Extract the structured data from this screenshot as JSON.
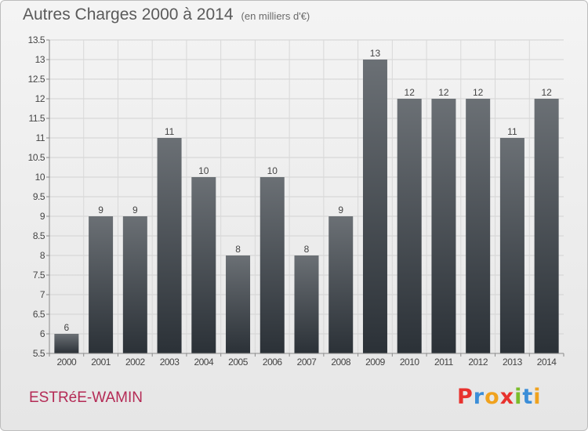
{
  "header": {
    "title": "Autres Charges 2000 à 2014",
    "subtitle": "(en milliers d'€)"
  },
  "footer": {
    "place": "ESTRéE-WAMIN",
    "logo_letters": [
      "P",
      "r",
      "o",
      "x",
      "i",
      "t",
      "i"
    ]
  },
  "colors": {
    "bar_top": "#6b7075",
    "bar_bottom": "#2b3137",
    "place_text": "#b42a55",
    "logo": [
      "#e8322e",
      "#3b8ed8",
      "#f0a21e",
      "#e8322e",
      "#7bbd2b",
      "#3b8ed8",
      "#f0a21e"
    ]
  },
  "chart_data": {
    "type": "bar",
    "categories": [
      "2000",
      "2001",
      "2002",
      "2003",
      "2004",
      "2005",
      "2006",
      "2007",
      "2008",
      "2009",
      "2010",
      "2011",
      "2012",
      "2013",
      "2014"
    ],
    "values": [
      6,
      9,
      9,
      11,
      10,
      8,
      10,
      8,
      9,
      13,
      12,
      12,
      12,
      11,
      12
    ],
    "ylim": [
      5.5,
      13.5
    ],
    "yticks": [
      "5.5",
      "6",
      "6.5",
      "7",
      "7.5",
      "8",
      "8.5",
      "9",
      "9.5",
      "10",
      "10.5",
      "11",
      "11.5",
      "12",
      "12.5",
      "13",
      "13.5"
    ],
    "grid": true,
    "xlabel": "",
    "ylabel": ""
  }
}
